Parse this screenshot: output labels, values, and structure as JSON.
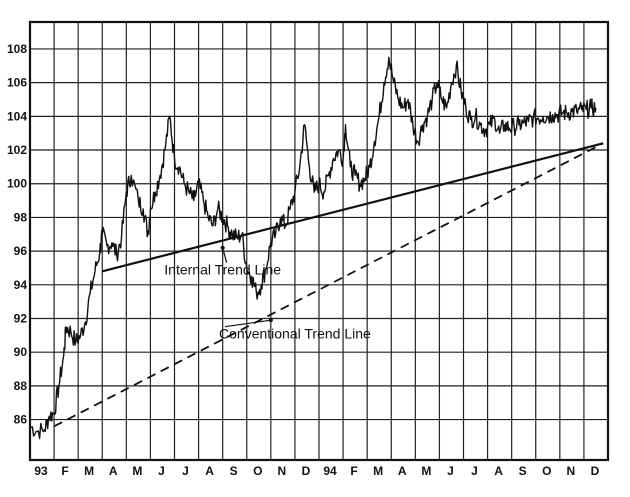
{
  "chart_data": {
    "type": "line",
    "y_ticks": [
      "86",
      "88",
      "90",
      "92",
      "94",
      "96",
      "98",
      "100",
      "102",
      "104",
      "106",
      "108"
    ],
    "ylim": [
      84,
      109
    ],
    "x_ticks": [
      "93",
      "F",
      "M",
      "A",
      "M",
      "J",
      "J",
      "A",
      "S",
      "O",
      "N",
      "D",
      "94",
      "F",
      "M",
      "A",
      "M",
      "J",
      "J",
      "A",
      "S",
      "O",
      "N",
      "D"
    ],
    "x_unit": "month index (0 = Jan 1993)",
    "xlim": [
      0,
      24
    ],
    "grid": true,
    "series": [
      {
        "x": [
          0.0,
          0.3,
          0.6,
          0.8,
          1.0,
          1.2,
          1.4,
          1.5,
          1.7,
          1.9,
          2.1,
          2.3,
          2.5,
          2.7,
          2.9,
          3.0,
          3.2,
          3.4,
          3.6,
          3.8,
          4.0,
          4.2,
          4.5,
          4.7,
          4.9,
          5.0,
          5.2,
          5.4,
          5.6,
          5.8,
          6.0,
          6.2,
          6.4,
          6.6,
          6.8,
          7.0,
          7.2,
          7.4,
          7.6,
          7.8,
          8.0,
          8.2,
          8.4,
          8.6,
          8.8,
          9.0,
          9.2,
          9.4,
          9.6,
          9.8,
          10.0,
          10.2,
          10.4,
          10.6,
          10.8,
          11.0,
          11.2,
          11.4,
          11.6,
          11.8,
          12.0,
          12.2,
          12.4,
          12.6,
          12.8,
          13.0,
          13.1,
          13.3,
          13.5,
          13.7,
          13.9,
          14.1,
          14.3,
          14.5,
          14.7,
          14.9,
          15.1,
          15.3,
          15.5,
          15.7,
          15.9,
          16.1,
          16.3,
          16.5,
          16.7,
          16.9,
          17.1,
          17.3,
          17.5,
          17.7,
          17.9,
          18.1,
          18.3,
          18.5,
          18.7,
          18.9,
          19.1,
          19.3,
          19.5,
          19.7,
          19.9,
          20.1,
          20.3,
          20.5,
          20.7,
          20.9,
          21.1,
          21.3,
          21.5,
          21.7,
          21.9,
          22.1,
          22.3,
          22.5,
          22.7,
          22.9,
          23.1,
          23.3,
          23.5
        ],
        "values": [
          85.6,
          85.3,
          85.4,
          86.2,
          86.4,
          88.0,
          89.8,
          91.5,
          91.2,
          90.6,
          91.0,
          91.8,
          93.5,
          94.8,
          96.0,
          97.0,
          96.3,
          96.5,
          95.8,
          96.8,
          99.5,
          100.5,
          99.0,
          98.5,
          97.0,
          98.5,
          99.5,
          100.5,
          102.0,
          104.0,
          101.5,
          101.0,
          100.0,
          99.5,
          99.0,
          100.0,
          99.0,
          98.0,
          97.5,
          98.5,
          98.0,
          97.5,
          97.0,
          96.8,
          97.0,
          95.0,
          94.5,
          93.5,
          94.0,
          95.0,
          96.5,
          97.0,
          98.0,
          97.5,
          98.5,
          99.5,
          101.0,
          103.5,
          101.0,
          99.5,
          100.0,
          99.5,
          100.5,
          101.5,
          102.0,
          101.5,
          103.5,
          101.0,
          100.5,
          100.0,
          100.3,
          101.0,
          102.5,
          104.0,
          106.0,
          107.5,
          106.0,
          105.0,
          104.5,
          105.0,
          103.5,
          102.5,
          103.5,
          104.0,
          105.0,
          106.0,
          105.0,
          104.5,
          106.0,
          107.0,
          105.5,
          104.5,
          103.8,
          104.0,
          103.5,
          103.2,
          103.5,
          103.8,
          103.0,
          103.5,
          103.3,
          103.4,
          103.5,
          103.6,
          103.7,
          103.9,
          103.9,
          104.0,
          104.0,
          104.1,
          104.1,
          104.2,
          104.2,
          104.3,
          104.3,
          104.4,
          104.4,
          104.5,
          104.5
        ]
      }
    ],
    "trend_lines": [
      {
        "name": "Internal Trend Line",
        "style": "solid",
        "points": [
          [
            3.0,
            94.8
          ],
          [
            23.8,
            102.4
          ]
        ]
      },
      {
        "name": "Conventional Trend Line",
        "style": "dashed",
        "points": [
          [
            1.0,
            85.6
          ],
          [
            23.8,
            102.4
          ]
        ]
      }
    ],
    "annotations": [
      {
        "text": "Internal Trend Line",
        "x": 8.0,
        "y": 94.6,
        "arrow_to": [
          8.0,
          96.2
        ]
      },
      {
        "text": "Conventional Trend Line",
        "x": 11.0,
        "y": 90.8,
        "arrow_to": [
          10.0,
          91.9
        ]
      }
    ]
  }
}
